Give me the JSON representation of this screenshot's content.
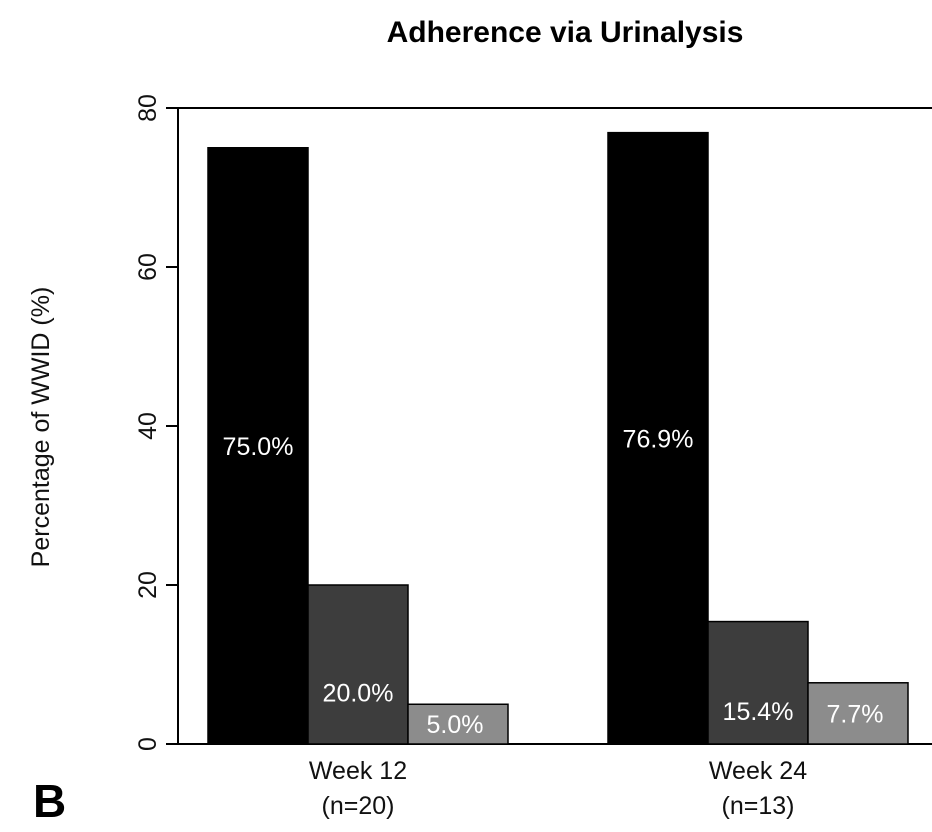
{
  "panel_letter": "B",
  "chart_data": {
    "type": "bar",
    "title": "Adherence via Urinalysis",
    "xlabel": "",
    "ylabel": "Percentage of WWID (%)",
    "ylim": [
      0,
      80
    ],
    "yticks": [
      0,
      20,
      40,
      60,
      80
    ],
    "grid": false,
    "legend": "none",
    "categories": [
      {
        "line1": "Week 12",
        "line2": "(n=20)"
      },
      {
        "line1": "Week 24",
        "line2": "(n=13)"
      }
    ],
    "series": [
      {
        "values": [
          75.0,
          76.9
        ],
        "labels": [
          "75.0%",
          "76.9%"
        ],
        "color": "#000000"
      },
      {
        "values": [
          20.0,
          15.4
        ],
        "labels": [
          "20.0%",
          "15.4%"
        ],
        "color": "#3d3d3d"
      },
      {
        "values": [
          5.0,
          7.7
        ],
        "labels": [
          "5.0%",
          "7.7%"
        ],
        "color": "#8c8c8c"
      }
    ]
  }
}
